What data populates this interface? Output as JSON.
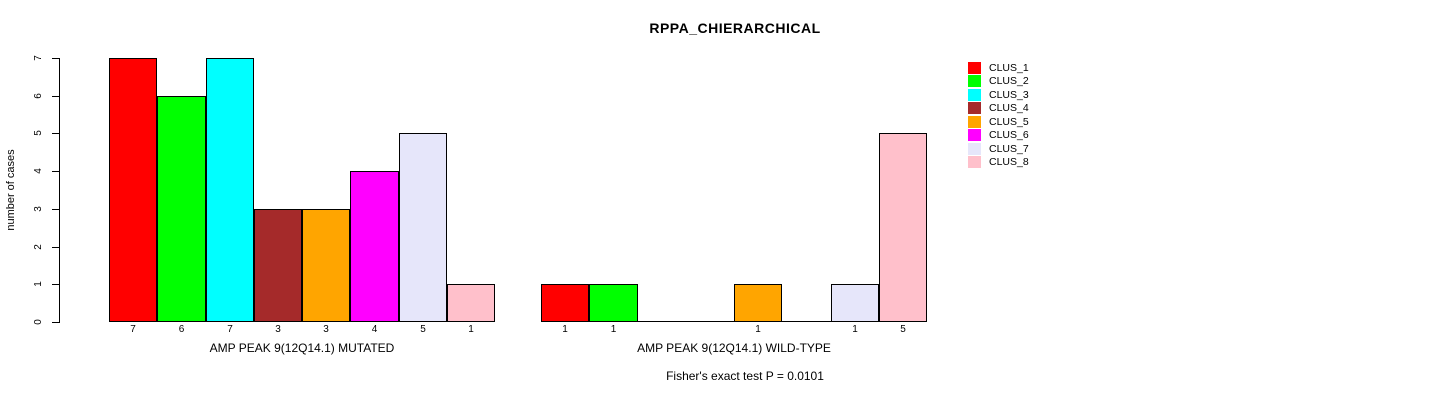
{
  "title": "RPPA_CHIERARCHICAL",
  "chart_data": {
    "type": "bar",
    "title": "RPPA_CHIERARCHICAL",
    "ylabel": "number of cases",
    "xlabel": "",
    "ylim": [
      0,
      7
    ],
    "yticks": [
      0,
      1,
      2,
      3,
      4,
      5,
      6,
      7
    ],
    "grid": false,
    "legend_position": "right",
    "categories": [
      "CLUS_1",
      "CLUS_2",
      "CLUS_3",
      "CLUS_4",
      "CLUS_5",
      "CLUS_6",
      "CLUS_7",
      "CLUS_8"
    ],
    "colors": [
      "#FF0000",
      "#00FF00",
      "#00FFFF",
      "#A52A2A",
      "#FFA500",
      "#FF00FF",
      "#E6E6FA",
      "#FFC0CB"
    ],
    "series": [
      {
        "name": "AMP PEAK 9(12Q14.1) MUTATED",
        "values": [
          7,
          6,
          7,
          3,
          3,
          4,
          5,
          1
        ],
        "bar_labels": [
          "7",
          "6",
          "7",
          "3",
          "3",
          "4",
          "5",
          "1"
        ]
      },
      {
        "name": "AMP PEAK 9(12Q14.1) WILD-TYPE",
        "values": [
          1,
          1,
          0,
          0,
          1,
          0,
          1,
          5
        ],
        "bar_labels": [
          "1",
          "1",
          "",
          "",
          "1",
          "",
          "1",
          "5"
        ]
      }
    ],
    "annotations": [
      "Fisher's exact test P = 0.0101"
    ]
  }
}
